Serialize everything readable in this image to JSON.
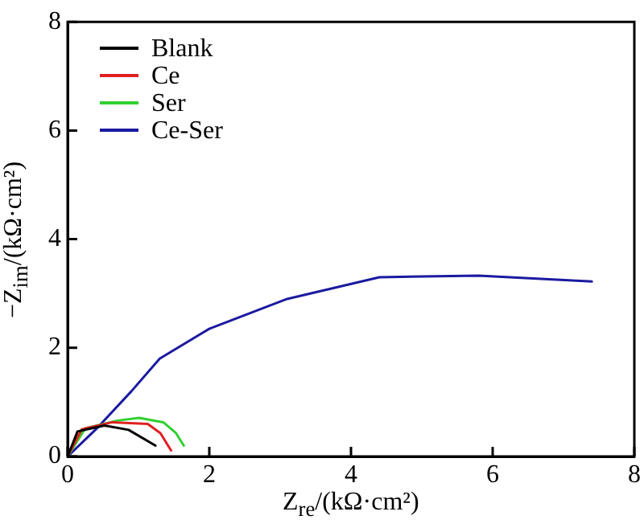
{
  "chart_data": {
    "type": "line",
    "xlabel": "Z$_{re}$/(kΩ·cm²)",
    "ylabel": "−Z$_{im}$/(kΩ·cm²)",
    "xlim": [
      0,
      8
    ],
    "ylim": [
      0,
      8
    ],
    "xticks": [
      0,
      2,
      4,
      6,
      8
    ],
    "yticks": [
      0,
      2,
      4,
      6,
      8
    ],
    "grid": false,
    "legend": "top left",
    "marker": "none",
    "line_style": "solid",
    "series": [
      {
        "name": "Blank",
        "color": "#000000",
        "x": [
          0,
          0.14,
          0.52,
          0.86,
          1.24
        ],
        "values": [
          0,
          0.46,
          0.57,
          0.49,
          0.2
        ]
      },
      {
        "name": "Ce",
        "color": "#e02020",
        "x": [
          0,
          0.2,
          0.63,
          1.13,
          1.31,
          1.46
        ],
        "values": [
          0,
          0.5,
          0.63,
          0.6,
          0.43,
          0.11
        ]
      },
      {
        "name": "Ser",
        "color": "#30d030",
        "x": [
          0,
          0.25,
          0.7,
          1.01,
          1.35,
          1.53,
          1.64
        ],
        "values": [
          0,
          0.52,
          0.66,
          0.71,
          0.63,
          0.43,
          0.2
        ]
      },
      {
        "name": "Ce-Ser",
        "color": "#1a1aa0",
        "x": [
          0,
          0.4,
          0.9,
          1.3,
          2.0,
          3.1,
          4.4,
          5.8,
          7.4
        ],
        "values": [
          0,
          0.5,
          1.2,
          1.8,
          2.35,
          2.9,
          3.3,
          3.33,
          3.22
        ]
      }
    ]
  }
}
